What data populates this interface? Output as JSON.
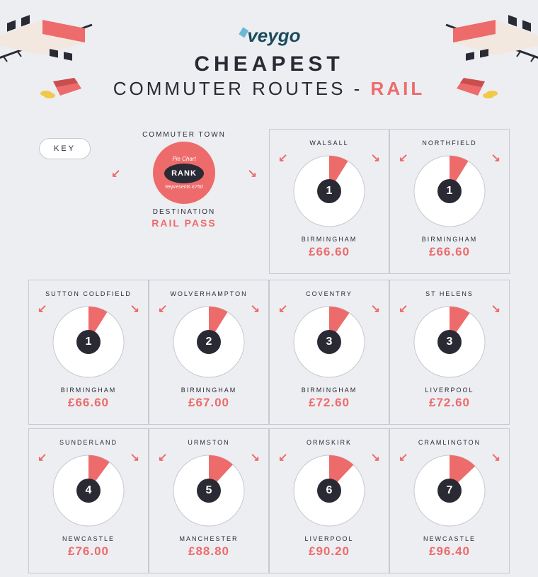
{
  "brand": {
    "name": "veygo"
  },
  "title": {
    "line1": "CHEAPEST",
    "line2_a": "COMMUTER ROUTES -",
    "line2_b": "RAIL"
  },
  "colors": {
    "accent": "#ed6b6b",
    "dark": "#2a2a35",
    "bg": "#edeef2",
    "border": "#c8c8d0",
    "white": "#ffffff",
    "logo_dark": "#1a4b5c",
    "logo_accent": "#6db8d8"
  },
  "key": {
    "label": "KEY",
    "top": "COMMUTER TOWN",
    "pie": "Pie Chart",
    "rank": "RANK",
    "represents": "Represents £750",
    "dest": "DESTINATION",
    "pass": "RAIL PASS"
  },
  "pie_max": 750,
  "routes": [
    {
      "rank": "1",
      "town": "WALSALL",
      "dest": "BIRMINGHAM",
      "price": "£66.60",
      "value": 66.6
    },
    {
      "rank": "1",
      "town": "NORTHFIELD",
      "dest": "BIRMINGHAM",
      "price": "£66.60",
      "value": 66.6
    },
    {
      "rank": "1",
      "town": "SUTTON COLDFIELD",
      "dest": "BIRMINGHAM",
      "price": "£66.60",
      "value": 66.6
    },
    {
      "rank": "2",
      "town": "WOLVERHAMPTON",
      "dest": "BIRMINGHAM",
      "price": "£67.00",
      "value": 67.0
    },
    {
      "rank": "3",
      "town": "COVENTRY",
      "dest": "BIRMINGHAM",
      "price": "£72.60",
      "value": 72.6
    },
    {
      "rank": "3",
      "town": "ST HELENS",
      "dest": "LIVERPOOL",
      "price": "£72.60",
      "value": 72.6
    },
    {
      "rank": "4",
      "town": "SUNDERLAND",
      "dest": "NEWCASTLE",
      "price": "£76.00",
      "value": 76.0
    },
    {
      "rank": "5",
      "town": "URMSTON",
      "dest": "MANCHESTER",
      "price": "£88.80",
      "value": 88.8
    },
    {
      "rank": "6",
      "town": "ORMSKIRK",
      "dest": "LIVERPOOL",
      "price": "£90.20",
      "value": 90.2
    },
    {
      "rank": "7",
      "town": "CRAMLINGTON",
      "dest": "NEWCASTLE",
      "price": "£96.40",
      "value": 96.4
    }
  ]
}
